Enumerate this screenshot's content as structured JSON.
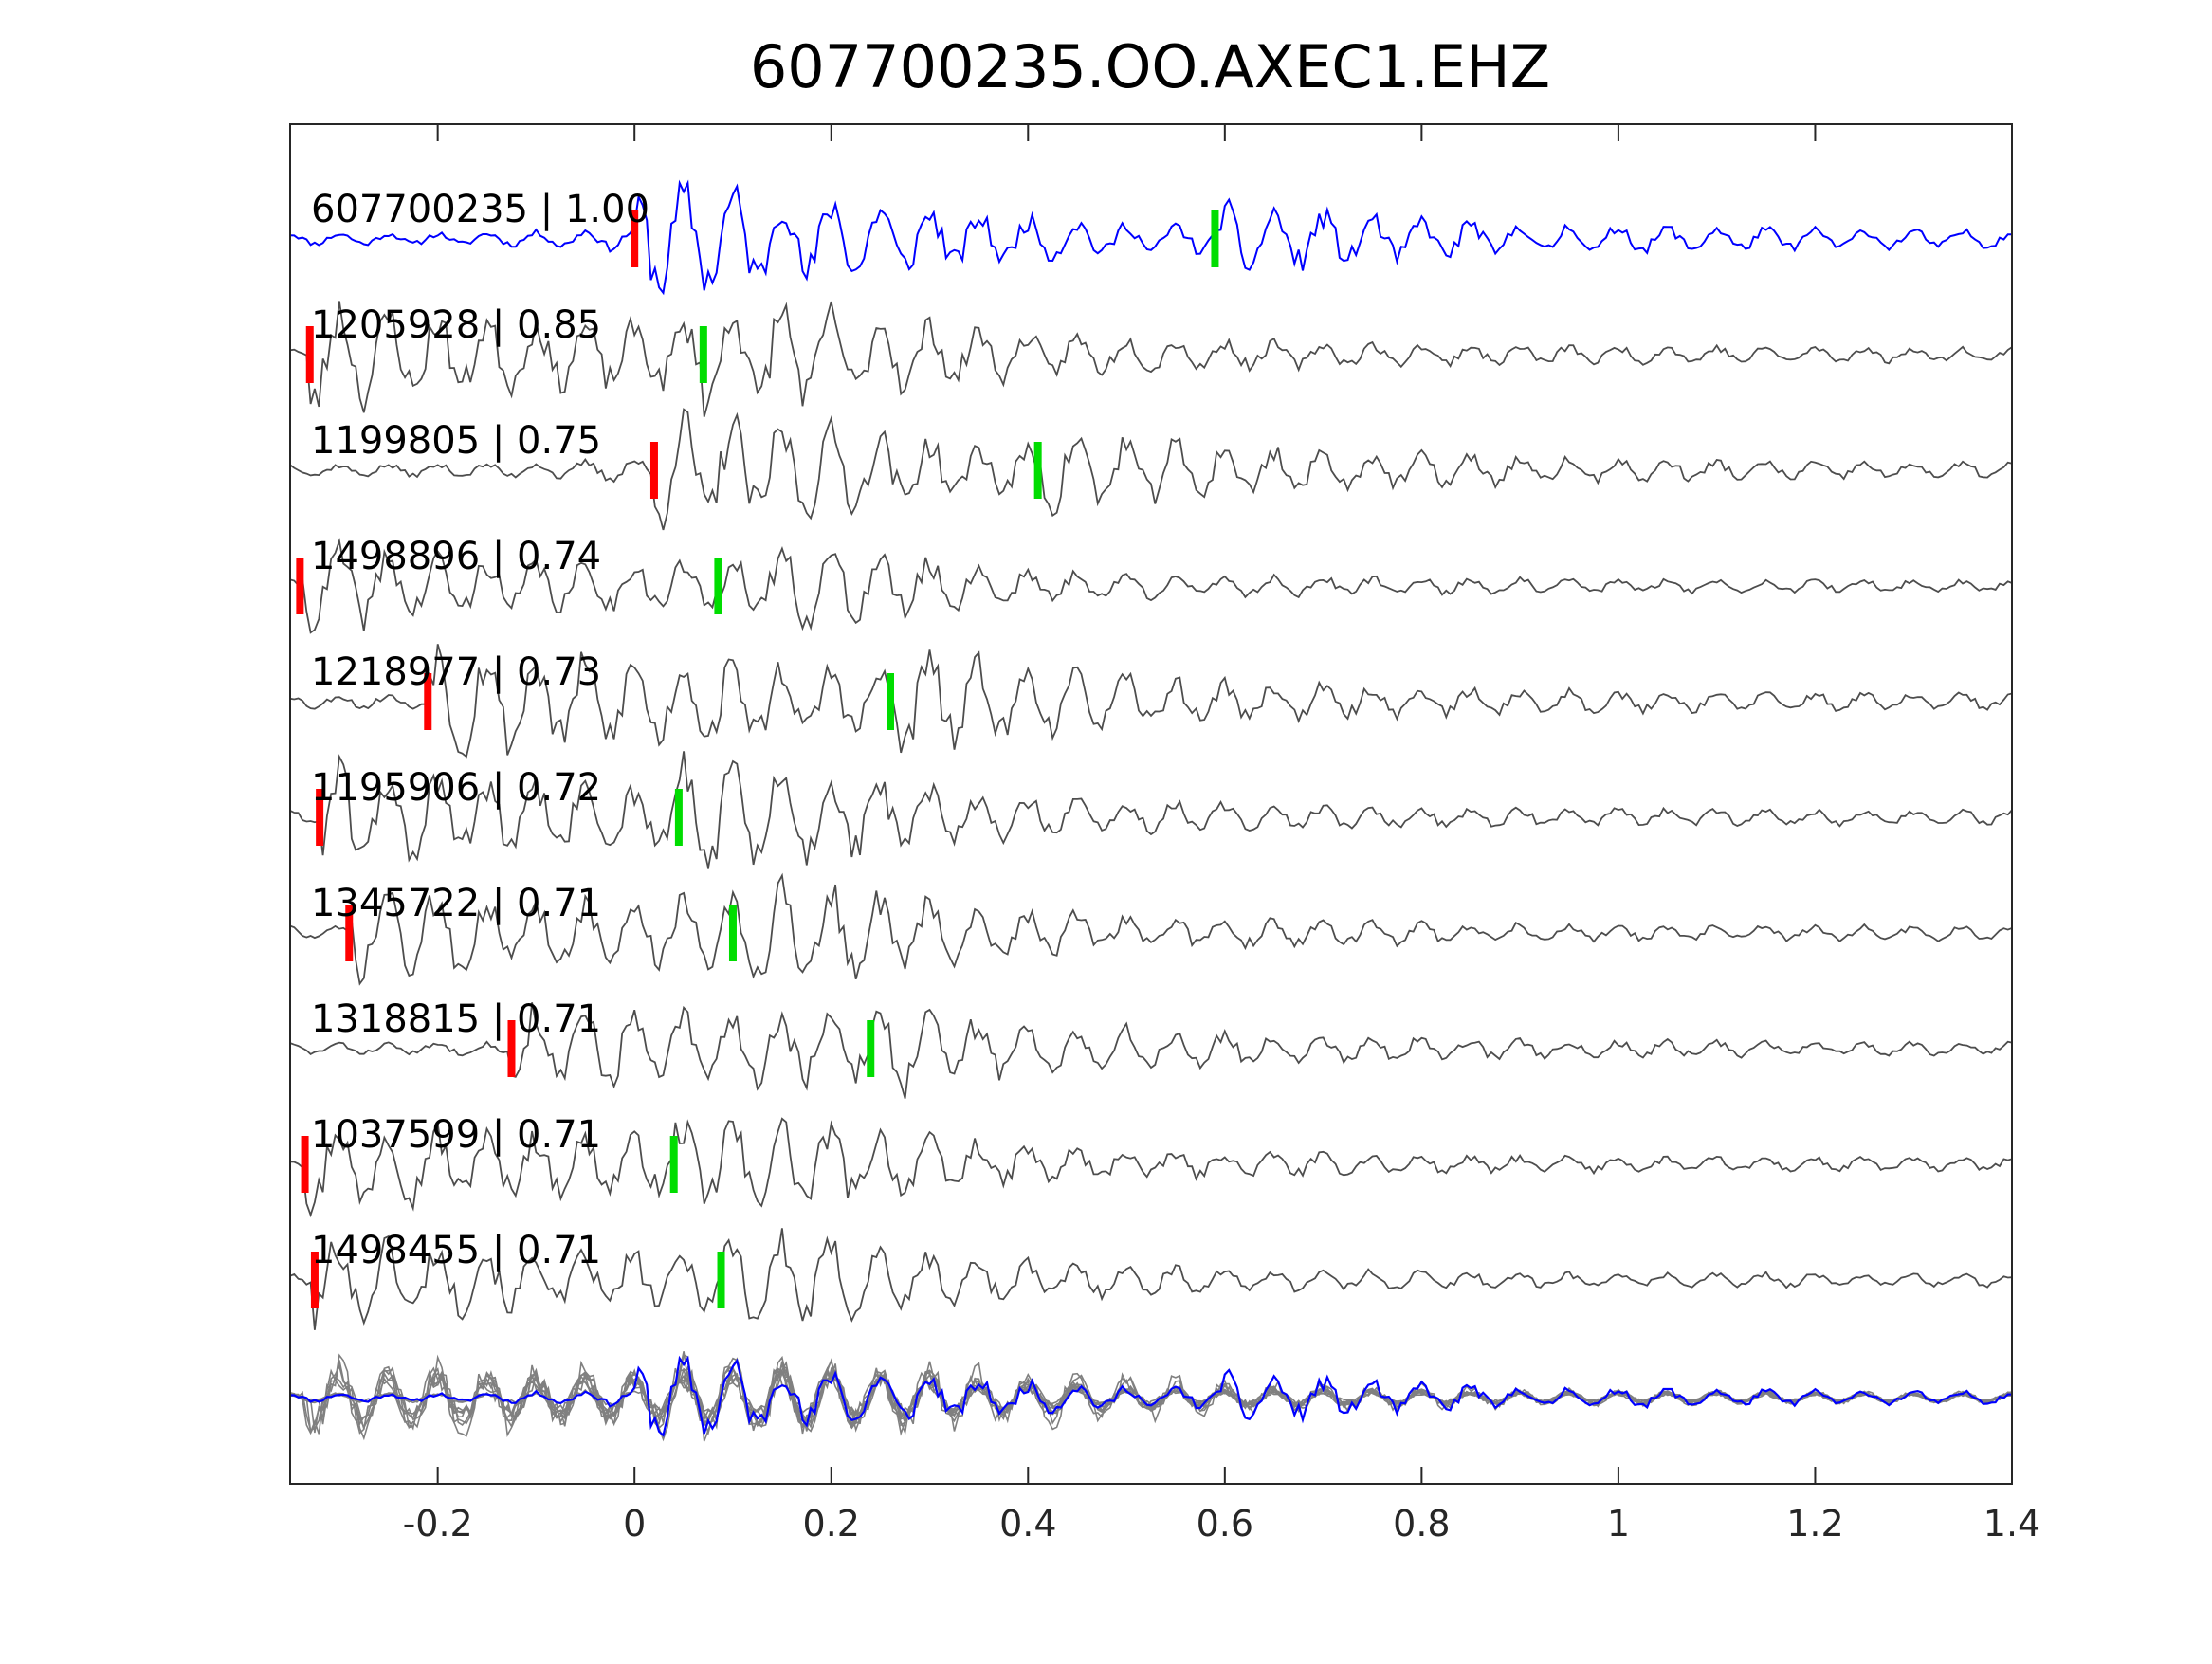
{
  "chart_data": {
    "type": "line",
    "title": "607700235.OO.AXEC1.EHZ",
    "xlabel": "",
    "ylabel": "",
    "xlim": [
      -0.35,
      1.4
    ],
    "xticks": [
      -0.2,
      0,
      0.2,
      0.4,
      0.6,
      0.8,
      1,
      1.2,
      1.4
    ],
    "xtick_labels": [
      "-0.2",
      "0",
      "0.2",
      "0.4",
      "0.6",
      "0.8",
      "1",
      "1.2",
      "1.4"
    ],
    "grid": false,
    "legend": "none",
    "colors": {
      "template": "#0000ff",
      "match": "#4d4d4d",
      "stack_match": "#808080",
      "p_pick": "#ff0000",
      "s_pick": "#00dd00",
      "axes": "#262626"
    },
    "series": [
      {
        "name": "607700235 | 1.00",
        "id": "607700235",
        "cc": "1.00",
        "p_pick": 0.0,
        "s_pick": 0.59,
        "amplitude": 0.55,
        "seed": 11
      },
      {
        "name": "1205928 | 0.85",
        "id": "1205928",
        "cc": "0.85",
        "p_pick": -0.33,
        "s_pick": 0.07,
        "amplitude": 0.62,
        "seed": 23
      },
      {
        "name": "1199805 | 0.75",
        "id": "1199805",
        "cc": "0.75",
        "p_pick": 0.02,
        "s_pick": 0.41,
        "amplitude": 0.55,
        "seed": 37
      },
      {
        "name": "1498896 | 0.74",
        "id": "1498896",
        "cc": "0.74",
        "p_pick": -0.34,
        "s_pick": 0.085,
        "amplitude": 0.48,
        "seed": 41
      },
      {
        "name": "1218977 | 0.73",
        "id": "1218977",
        "cc": "0.73",
        "p_pick": -0.21,
        "s_pick": 0.26,
        "amplitude": 0.65,
        "seed": 53
      },
      {
        "name": "1195906 | 0.72",
        "id": "1195906",
        "cc": "0.72",
        "p_pick": -0.32,
        "s_pick": 0.045,
        "amplitude": 0.6,
        "seed": 61
      },
      {
        "name": "1345722 | 0.71",
        "id": "1345722",
        "cc": "0.71",
        "p_pick": -0.29,
        "s_pick": 0.1,
        "amplitude": 0.58,
        "seed": 73
      },
      {
        "name": "1318815 | 0.71",
        "id": "1318815",
        "cc": "0.71",
        "p_pick": -0.125,
        "s_pick": 0.24,
        "amplitude": 0.5,
        "seed": 83
      },
      {
        "name": "1037599 | 0.71",
        "id": "1037599",
        "cc": "0.71",
        "p_pick": -0.335,
        "s_pick": 0.04,
        "amplitude": 0.55,
        "seed": 97
      },
      {
        "name": "1498455 | 0.71",
        "id": "1498455",
        "cc": "0.71",
        "p_pick": -0.325,
        "s_pick": 0.088,
        "amplitude": 0.52,
        "seed": 101
      }
    ]
  }
}
